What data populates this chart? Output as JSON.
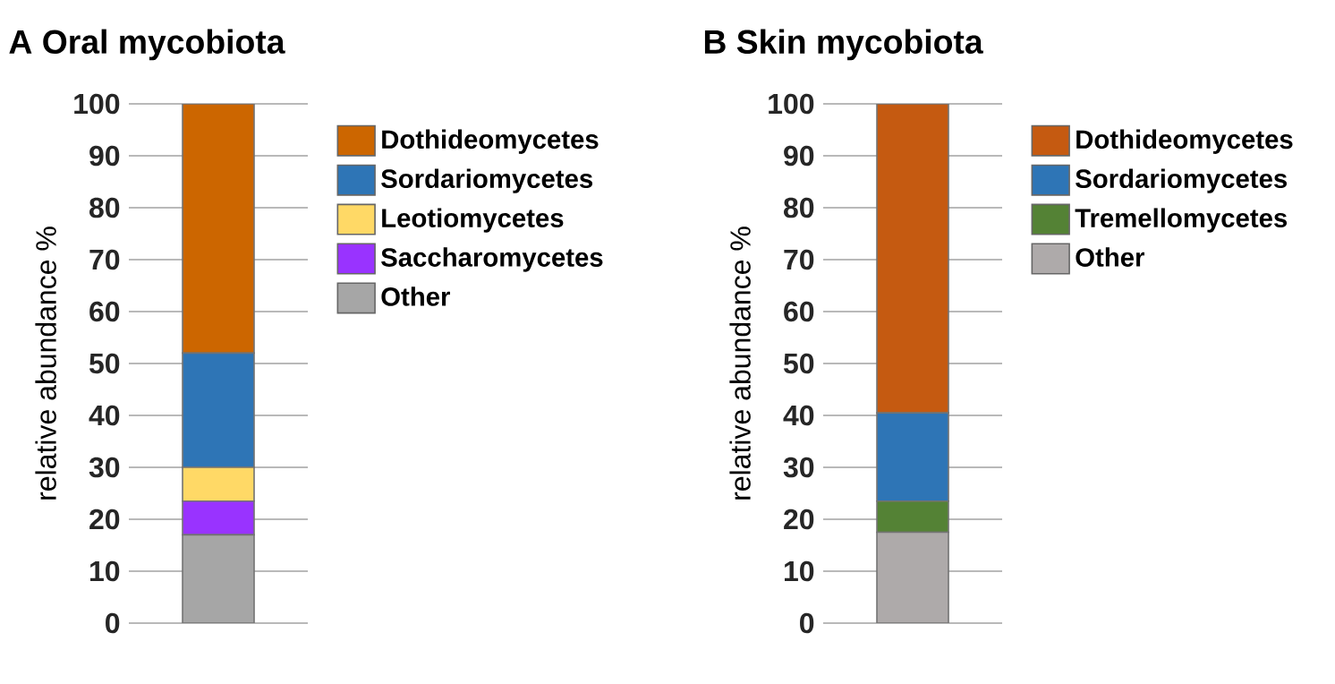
{
  "chart_data": [
    {
      "type": "bar",
      "title": "A  Oral mycobiota",
      "ylabel": "relative abundance %",
      "categories": [
        null
      ],
      "stacked": true,
      "grid": "y",
      "legend": "top right",
      "tick_labels": "y",
      "ylim": [
        0,
        100
      ],
      "yticks": [
        0,
        10,
        20,
        30,
        40,
        50,
        60,
        70,
        80,
        90,
        100
      ],
      "series": [
        {
          "name": "Other",
          "color": "#a6a6a6",
          "values": [
            17
          ]
        },
        {
          "name": "Saccharomycetes",
          "color": "#9933ff",
          "values": [
            6.5
          ]
        },
        {
          "name": "Leotiomycetes",
          "color": "#ffd966",
          "values": [
            6.5
          ]
        },
        {
          "name": "Sordariomycetes",
          "color": "#2e75b6",
          "values": [
            22
          ]
        },
        {
          "name": "Dothideomycetes",
          "color": "#cc6600",
          "values": [
            48
          ]
        }
      ]
    },
    {
      "type": "bar",
      "title": "B  Skin mycobiota",
      "ylabel": "relative abundance %",
      "categories": [
        null
      ],
      "stacked": true,
      "grid": "y",
      "legend": "top right",
      "tick_labels": "y",
      "ylim": [
        0,
        100
      ],
      "yticks": [
        0,
        10,
        20,
        30,
        40,
        50,
        60,
        70,
        80,
        90,
        100
      ],
      "series": [
        {
          "name": "Other",
          "color": "#aeaaaa",
          "values": [
            17.5
          ]
        },
        {
          "name": "Tremellomycetes",
          "color": "#548235",
          "values": [
            6
          ]
        },
        {
          "name": "Sordariomycetes",
          "color": "#2e75b6",
          "values": [
            17
          ]
        },
        {
          "name": "Dothideomycetes",
          "color": "#c55a11",
          "values": [
            59.5
          ]
        }
      ]
    }
  ]
}
